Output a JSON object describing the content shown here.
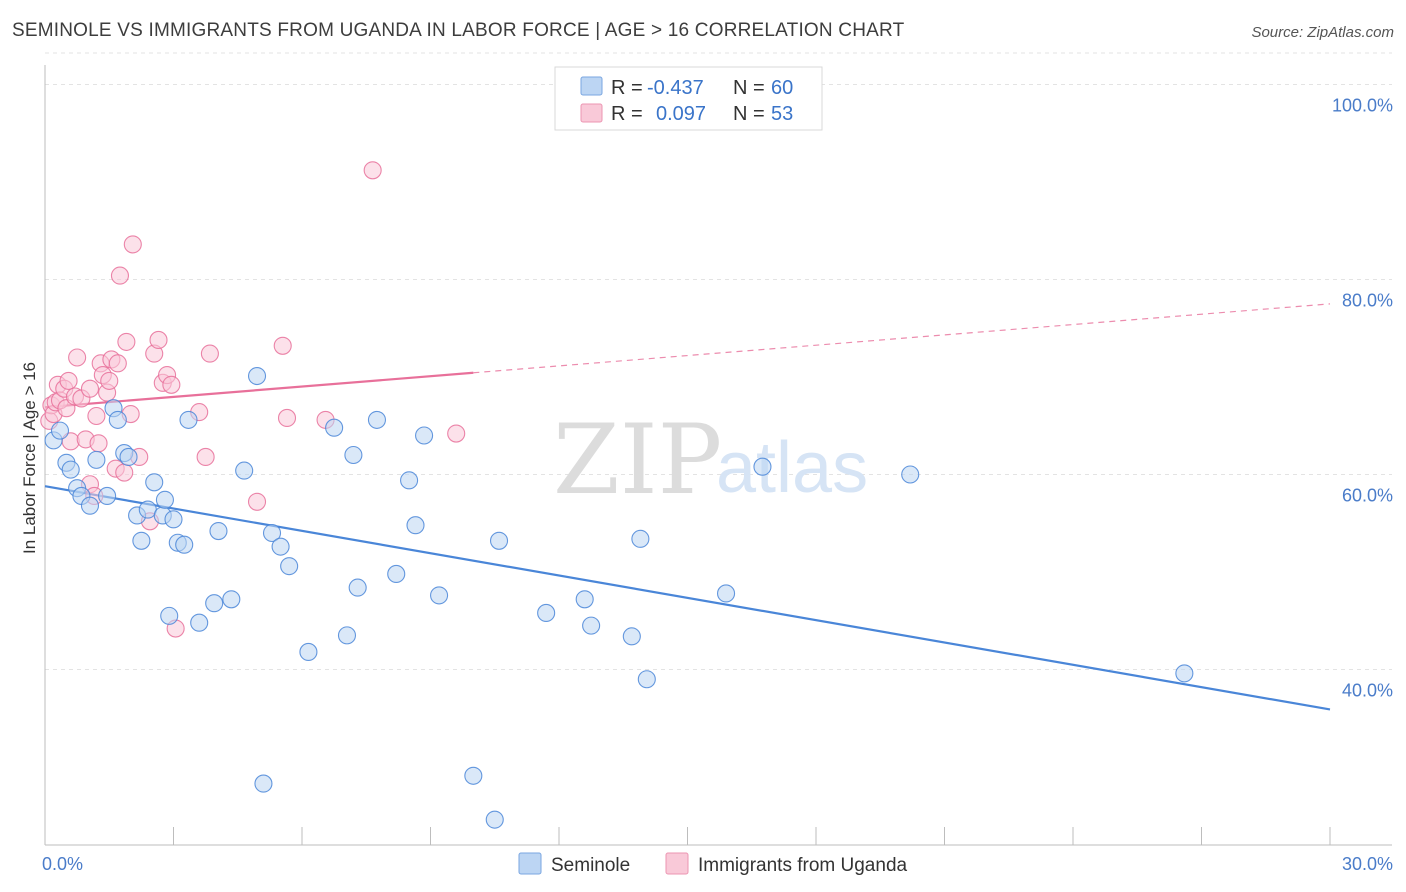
{
  "title": "SEMINOLE VS IMMIGRANTS FROM UGANDA IN LABOR FORCE | AGE > 16 CORRELATION CHART",
  "source": "Source: ZipAtlas.com",
  "watermark": {
    "zip": "ZIP",
    "atlas": "atlas"
  },
  "legend": {
    "rows": [
      {
        "r_label": "R =",
        "r_value": "-0.437",
        "n_label": "N =",
        "n_value": "60",
        "color": "#a9c8f0"
      },
      {
        "r_label": "R =",
        "r_value": "0.097",
        "n_label": "N =",
        "n_value": "53",
        "color": "#f5b8cb"
      }
    ]
  },
  "chart_data": {
    "type": "scatter",
    "title": "SEMINOLE VS IMMIGRANTS FROM UGANDA IN LABOR FORCE | AGE > 16 CORRELATION CHART",
    "xlabel": "",
    "ylabel": "In Labor Force | Age > 16",
    "xlim": [
      0,
      30
    ],
    "ylim": [
      22,
      102
    ],
    "x_tick_labels": [
      {
        "value": 0,
        "label": "0.0%"
      },
      {
        "value": 30,
        "label": "30.0%"
      }
    ],
    "y_tick_labels": [
      {
        "value": 100,
        "label": "100.0%"
      },
      {
        "value": 80,
        "label": "80.0%"
      },
      {
        "value": 60,
        "label": "60.0%"
      },
      {
        "value": 40,
        "label": "40.0%"
      }
    ],
    "grid": true,
    "legend_position": "bottom",
    "series": [
      {
        "name": "Seminole",
        "color": "#4a86d8",
        "fill": "#bcd5f3",
        "trend": {
          "x": [
            0,
            30
          ],
          "y": [
            58.8,
            35.9
          ],
          "dashed_from": null
        },
        "points": [
          [
            0.2,
            63.5
          ],
          [
            0.35,
            64.5
          ],
          [
            0.5,
            61.2
          ],
          [
            0.6,
            60.5
          ],
          [
            0.75,
            58.6
          ],
          [
            0.85,
            57.8
          ],
          [
            1.05,
            56.8
          ],
          [
            1.2,
            61.5
          ],
          [
            1.45,
            57.8
          ],
          [
            1.6,
            66.8
          ],
          [
            1.7,
            65.6
          ],
          [
            1.85,
            62.2
          ],
          [
            1.95,
            61.8
          ],
          [
            2.15,
            55.8
          ],
          [
            2.25,
            53.2
          ],
          [
            2.4,
            56.4
          ],
          [
            2.55,
            59.2
          ],
          [
            2.75,
            55.8
          ],
          [
            2.8,
            57.4
          ],
          [
            2.9,
            45.5
          ],
          [
            3.0,
            55.4
          ],
          [
            3.1,
            53.0
          ],
          [
            3.25,
            52.8
          ],
          [
            3.35,
            65.6
          ],
          [
            3.6,
            44.8
          ],
          [
            3.95,
            46.8
          ],
          [
            4.05,
            54.2
          ],
          [
            4.35,
            47.2
          ],
          [
            4.65,
            60.4
          ],
          [
            4.95,
            70.1
          ],
          [
            5.1,
            28.3
          ],
          [
            5.3,
            54.0
          ],
          [
            5.5,
            52.6
          ],
          [
            5.7,
            50.6
          ],
          [
            6.15,
            41.8
          ],
          [
            6.75,
            64.8
          ],
          [
            7.05,
            43.5
          ],
          [
            7.2,
            62.0
          ],
          [
            7.3,
            48.4
          ],
          [
            7.75,
            65.6
          ],
          [
            8.2,
            49.8
          ],
          [
            8.5,
            59.4
          ],
          [
            8.65,
            54.8
          ],
          [
            8.85,
            64.0
          ],
          [
            9.2,
            47.6
          ],
          [
            10.0,
            29.1
          ],
          [
            10.5,
            24.6
          ],
          [
            10.6,
            53.2
          ],
          [
            11.7,
            45.8
          ],
          [
            12.6,
            47.2
          ],
          [
            12.75,
            44.5
          ],
          [
            13.7,
            43.4
          ],
          [
            13.9,
            53.4
          ],
          [
            14.05,
            39.0
          ],
          [
            15.9,
            47.8
          ],
          [
            16.75,
            60.8
          ],
          [
            20.2,
            60.0
          ],
          [
            26.6,
            39.6
          ]
        ]
      },
      {
        "name": "Immigrants from Uganda",
        "color": "#e8709a",
        "fill": "#f9c9d8",
        "trend": {
          "x": [
            0,
            30
          ],
          "y": [
            66.9,
            77.5
          ],
          "dashed_from": 10.0
        },
        "points": [
          [
            0.1,
            65.5
          ],
          [
            0.15,
            67.1
          ],
          [
            0.2,
            66.2
          ],
          [
            0.25,
            67.4
          ],
          [
            0.3,
            69.2
          ],
          [
            0.35,
            67.6
          ],
          [
            0.45,
            68.8
          ],
          [
            0.5,
            66.8
          ],
          [
            0.55,
            69.6
          ],
          [
            0.6,
            63.4
          ],
          [
            0.7,
            68.0
          ],
          [
            0.75,
            72.0
          ],
          [
            0.85,
            67.8
          ],
          [
            0.95,
            63.6
          ],
          [
            1.05,
            68.8
          ],
          [
            1.05,
            59.0
          ],
          [
            1.15,
            57.8
          ],
          [
            1.2,
            66.0
          ],
          [
            1.25,
            63.2
          ],
          [
            1.3,
            71.4
          ],
          [
            1.35,
            70.2
          ],
          [
            1.45,
            68.4
          ],
          [
            1.5,
            69.6
          ],
          [
            1.55,
            71.8
          ],
          [
            1.65,
            60.6
          ],
          [
            1.7,
            71.4
          ],
          [
            1.75,
            80.4
          ],
          [
            1.85,
            60.2
          ],
          [
            1.9,
            73.6
          ],
          [
            2.0,
            66.2
          ],
          [
            2.05,
            83.6
          ],
          [
            2.2,
            61.8
          ],
          [
            2.45,
            55.2
          ],
          [
            2.55,
            72.4
          ],
          [
            2.65,
            73.8
          ],
          [
            2.75,
            69.4
          ],
          [
            2.85,
            70.2
          ],
          [
            2.95,
            69.2
          ],
          [
            3.05,
            44.2
          ],
          [
            3.6,
            66.4
          ],
          [
            3.75,
            61.8
          ],
          [
            3.85,
            72.4
          ],
          [
            4.95,
            57.2
          ],
          [
            5.55,
            73.2
          ],
          [
            5.65,
            65.8
          ],
          [
            6.55,
            65.6
          ],
          [
            7.65,
            91.2
          ],
          [
            9.6,
            64.2
          ]
        ]
      }
    ]
  }
}
